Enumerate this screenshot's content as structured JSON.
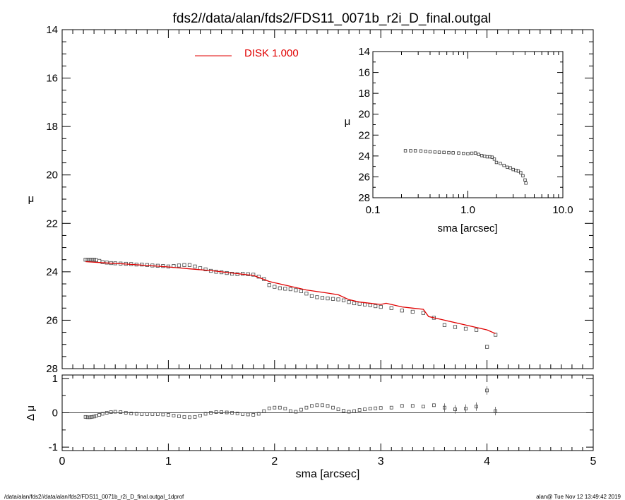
{
  "title": "fds2//data/alan/fds2/FDS11_0071b_r2i_D_final.outgal",
  "footer": {
    "left": "/data/alan/fds2//data/alan/fds2/FDS11_0071b_r2i_D_final.outgal_1dprof",
    "right": "alan@  Tue Nov 12 13:49:42 2019"
  },
  "chart_data": [
    {
      "id": "main-profile",
      "type": "scatter",
      "ylabel": "μ",
      "xlim": [
        0,
        5
      ],
      "ylim": [
        28,
        14
      ],
      "y_inverted": true,
      "y_ticks": [
        "14",
        "16",
        "18",
        "20",
        "22",
        "24",
        "26",
        "28"
      ],
      "legend": {
        "placement": "top-center",
        "label": "DISK  1.000",
        "color": "#e00000"
      },
      "series": [
        {
          "name": "",
          "kind": "points",
          "x": [
            0.22,
            0.24,
            0.26,
            0.28,
            0.3,
            0.32,
            0.35,
            0.38,
            0.42,
            0.46,
            0.5,
            0.55,
            0.6,
            0.65,
            0.7,
            0.75,
            0.8,
            0.85,
            0.9,
            0.95,
            1.0,
            1.05,
            1.1,
            1.15,
            1.2,
            1.25,
            1.3,
            1.35,
            1.4,
            1.45,
            1.5,
            1.55,
            1.6,
            1.65,
            1.7,
            1.75,
            1.8,
            1.85,
            1.9,
            1.95,
            2.0,
            2.05,
            2.1,
            2.15,
            2.2,
            2.25,
            2.3,
            2.35,
            2.4,
            2.45,
            2.5,
            2.55,
            2.6,
            2.65,
            2.7,
            2.75,
            2.8,
            2.85,
            2.9,
            2.95,
            3.0,
            3.1,
            3.2,
            3.3,
            3.4,
            3.5,
            3.6,
            3.7,
            3.8,
            3.9,
            4.0,
            4.08
          ],
          "y": [
            23.5,
            23.5,
            23.5,
            23.5,
            23.5,
            23.52,
            23.55,
            23.6,
            23.62,
            23.64,
            23.65,
            23.66,
            23.67,
            23.68,
            23.7,
            23.7,
            23.72,
            23.74,
            23.75,
            23.76,
            23.78,
            23.76,
            23.74,
            23.72,
            23.72,
            23.78,
            23.85,
            23.9,
            23.96,
            24.0,
            24.02,
            24.05,
            24.08,
            24.1,
            24.08,
            24.1,
            24.12,
            24.2,
            24.3,
            24.55,
            24.62,
            24.68,
            24.7,
            24.72,
            24.76,
            24.8,
            24.9,
            25.0,
            25.05,
            25.08,
            25.1,
            25.12,
            25.14,
            25.18,
            25.25,
            25.3,
            25.32,
            25.35,
            25.38,
            25.42,
            25.45,
            25.5,
            25.6,
            25.65,
            25.7,
            25.9,
            26.2,
            26.28,
            26.35,
            26.4,
            27.1,
            26.6
          ]
        },
        {
          "name": "DISK  1.000",
          "kind": "line",
          "color": "#e00000",
          "x": [
            0.22,
            0.4,
            0.6,
            0.8,
            1.0,
            1.2,
            1.4,
            1.6,
            1.8,
            1.88,
            1.95,
            2.1,
            2.3,
            2.5,
            2.6,
            2.7,
            2.8,
            3.0,
            3.05,
            3.2,
            3.3,
            3.4,
            3.45,
            3.6,
            3.8,
            4.0,
            4.08
          ],
          "y": [
            23.58,
            23.63,
            23.68,
            23.74,
            23.8,
            23.88,
            23.95,
            24.05,
            24.15,
            24.28,
            24.4,
            24.55,
            24.75,
            24.88,
            24.95,
            25.15,
            25.25,
            25.35,
            25.3,
            25.45,
            25.5,
            25.55,
            25.85,
            26.0,
            26.2,
            26.4,
            26.55
          ]
        }
      ]
    },
    {
      "id": "inset-profile",
      "type": "scatter",
      "xlabel": "sma [arcsec]",
      "ylabel": "μ",
      "x_scale": "log",
      "xlim": [
        0.1,
        10.0
      ],
      "ylim": [
        28,
        14
      ],
      "x_ticks": [
        "0.1",
        "1.0",
        "10.0"
      ],
      "y_ticks": [
        "14",
        "16",
        "18",
        "20",
        "22",
        "24",
        "26",
        "28"
      ],
      "series": [
        {
          "name": "",
          "kind": "points",
          "x": [
            0.22,
            0.25,
            0.28,
            0.32,
            0.36,
            0.4,
            0.45,
            0.5,
            0.56,
            0.63,
            0.7,
            0.8,
            0.9,
            1.0,
            1.1,
            1.2,
            1.3,
            1.4,
            1.5,
            1.6,
            1.7,
            1.8,
            1.9,
            2.0,
            2.2,
            2.4,
            2.6,
            2.8,
            3.0,
            3.2,
            3.4,
            3.6,
            3.8,
            4.0,
            4.08
          ],
          "y": [
            23.5,
            23.5,
            23.5,
            23.52,
            23.55,
            23.6,
            23.62,
            23.64,
            23.66,
            23.68,
            23.7,
            23.72,
            23.75,
            23.78,
            23.74,
            23.72,
            23.85,
            23.96,
            24.02,
            24.08,
            24.08,
            24.12,
            24.3,
            24.62,
            24.72,
            24.9,
            25.08,
            25.14,
            25.3,
            25.38,
            25.45,
            25.6,
            25.9,
            26.3,
            26.6
          ]
        }
      ]
    },
    {
      "id": "residuals",
      "type": "scatter",
      "xlabel": "sma [arcsec]",
      "ylabel": "Δ μ",
      "xlim": [
        0,
        5
      ],
      "ylim": [
        -1.1,
        1.1
      ],
      "x_ticks": [
        "0",
        "1",
        "2",
        "3",
        "4",
        "5"
      ],
      "y_ticks": [
        "1",
        "0",
        "-1"
      ],
      "series": [
        {
          "name": "",
          "kind": "points",
          "x": [
            0.22,
            0.24,
            0.26,
            0.28,
            0.3,
            0.32,
            0.35,
            0.38,
            0.42,
            0.46,
            0.5,
            0.55,
            0.6,
            0.65,
            0.7,
            0.75,
            0.8,
            0.85,
            0.9,
            0.95,
            1.0,
            1.05,
            1.1,
            1.15,
            1.2,
            1.25,
            1.3,
            1.35,
            1.4,
            1.45,
            1.5,
            1.55,
            1.6,
            1.65,
            1.7,
            1.75,
            1.8,
            1.85,
            1.9,
            1.95,
            2.0,
            2.05,
            2.1,
            2.15,
            2.2,
            2.25,
            2.3,
            2.35,
            2.4,
            2.45,
            2.5,
            2.55,
            2.6,
            2.65,
            2.7,
            2.75,
            2.8,
            2.85,
            2.9,
            2.95,
            3.0,
            3.1,
            3.2,
            3.3,
            3.4,
            3.5,
            3.6,
            3.7,
            3.8,
            3.9,
            4.0,
            4.08
          ],
          "y": [
            -0.12,
            -0.13,
            -0.13,
            -0.12,
            -0.11,
            -0.09,
            -0.06,
            -0.03,
            0.0,
            0.02,
            0.03,
            0.02,
            0.0,
            -0.02,
            -0.03,
            -0.04,
            -0.04,
            -0.04,
            -0.04,
            -0.05,
            -0.06,
            -0.08,
            -0.1,
            -0.12,
            -0.13,
            -0.12,
            -0.08,
            -0.03,
            0.0,
            0.02,
            0.02,
            0.01,
            0.0,
            -0.02,
            -0.04,
            -0.05,
            -0.06,
            -0.03,
            0.05,
            0.13,
            0.15,
            0.15,
            0.12,
            0.05,
            0.03,
            0.09,
            0.15,
            0.2,
            0.22,
            0.22,
            0.2,
            0.15,
            0.1,
            0.06,
            0.03,
            0.05,
            0.08,
            0.1,
            0.12,
            0.13,
            0.14,
            0.15,
            0.2,
            0.2,
            0.18,
            0.22,
            0.15,
            0.1,
            0.12,
            0.18,
            0.65,
            0.05
          ]
        }
      ]
    }
  ]
}
